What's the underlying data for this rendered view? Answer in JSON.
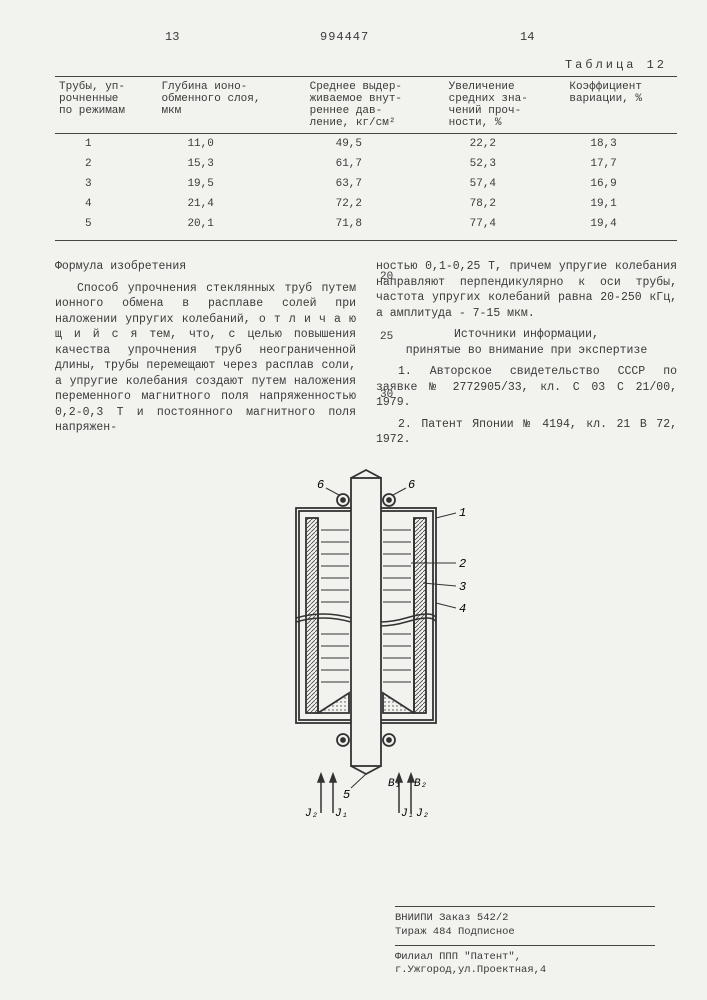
{
  "header": {
    "left_num": "13",
    "doc_num": "994447",
    "right_num": "14",
    "table_label": "Таблица 12"
  },
  "table": {
    "columns": [
      "Трубы, уп-\nрочненные\nпо режимам",
      "Глубина ионо-\nобменного слоя,\nмкм",
      "Среднее выдер-\nживаемое внут-\nреннее дав-\nление, кг/см²",
      "Увеличение\nсредних зна-\nчений проч-\nности, %",
      "Коэффициент\nвариации, %"
    ],
    "rows": [
      [
        "1",
        "11,0",
        "49,5",
        "22,2",
        "18,3"
      ],
      [
        "2",
        "15,3",
        "61,7",
        "52,3",
        "17,7"
      ],
      [
        "3",
        "19,5",
        "63,7",
        "57,4",
        "16,9"
      ],
      [
        "4",
        "21,4",
        "72,2",
        "78,2",
        "19,1"
      ],
      [
        "5",
        "20,1",
        "71,8",
        "77,4",
        "19,4"
      ]
    ]
  },
  "body": {
    "formula_title": "Формула изобретения",
    "col1": "Способ упрочнения стеклянных труб путем ионного обмена в расплаве солей при наложении упругих колебаний, о т л и ч а ю щ и й с я  тем, что, с целью повышения качества упрочнения труб неограниченной длины, трубы перемещают через расплав соли, а упругие колебания создают путем наложения переменного магнитного поля напряженностью 0,2-0,3 Т и постоянного магнитного поля напряжен-",
    "col2a": "ностью 0,1-0,25 Т, причем упругие колебания направляют перпендикулярно к оси трубы, частота упругих колебаний равна 20-250 кГц, а амплитуда - 7-15 мкм.",
    "sources_title": "Источники информации,\nпринятые во внимание при экспертизе",
    "col2b": "1. Авторское свидетельство СССР по заявке № 2772905/33, кл. С 03 С 21/00, 1979.",
    "col2c": "2. Патент Японии № 4194, кл. 21 В 72, 1972.",
    "line20": "20",
    "line25": "25",
    "line30": "30"
  },
  "figure": {
    "labels": {
      "n1": "1",
      "n2": "2",
      "n3": "3",
      "n4": "4",
      "n5": "5",
      "n6l": "6",
      "n6r": "6"
    },
    "arrows": {
      "b1": "B₁",
      "b2": "B₂",
      "j1": "J₁",
      "j2": "J₂"
    },
    "colors": {
      "stroke": "#333333",
      "hatch": "#444444",
      "fill": "#f2f2ee"
    }
  },
  "footer": {
    "l1": "ВНИИПИ  Заказ 542/2",
    "l2": "Тираж 484   Подписное",
    "l3": "Филиал ППП \"Патент\",",
    "l4": "г.Ужгород,ул.Проектная,4"
  }
}
